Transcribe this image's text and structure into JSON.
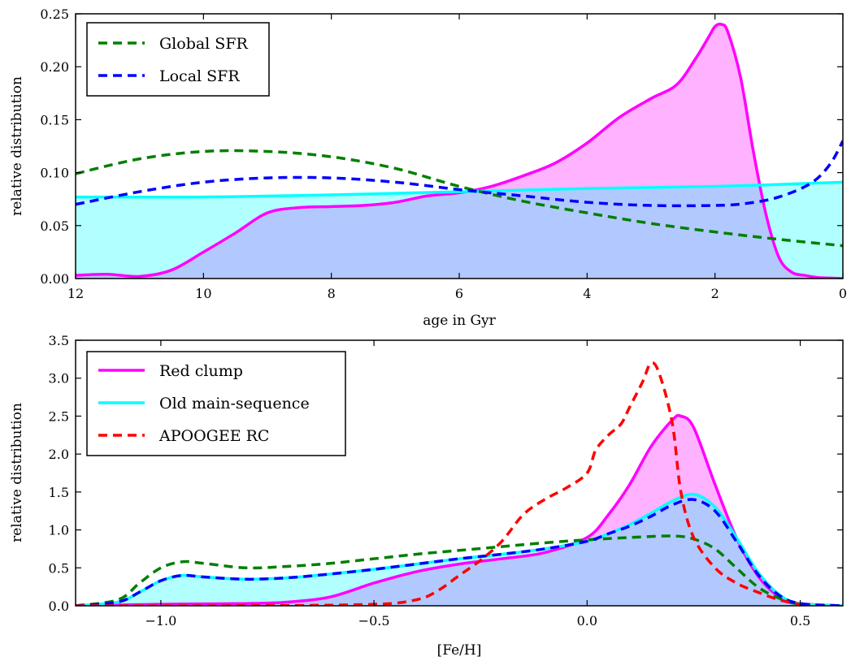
{
  "colors": {
    "magenta": "#ff00ff",
    "cyan": "#00ffff",
    "green": "#007f00",
    "blue": "#0000ff",
    "red": "#ff0000",
    "magenta_fill": "#e8b3e8",
    "cyan_fill": "#b3e9e9",
    "overlap_fill": "#a6b6de"
  },
  "chart_data": [
    {
      "type": "area",
      "xlabel": "age in Gyr",
      "ylabel": "relative distribution",
      "xlim": [
        12,
        0
      ],
      "ylim": [
        0,
        0.25
      ],
      "xticks": [
        12,
        10,
        8,
        6,
        4,
        2,
        0
      ],
      "xtick_labels": [
        "12",
        "10",
        "8",
        "6",
        "4",
        "2",
        "0"
      ],
      "yticks": [
        0,
        0.05,
        0.1,
        0.15,
        0.2,
        0.25
      ],
      "ytick_labels": [
        "0.00",
        "0.05",
        "0.10",
        "0.15",
        "0.20",
        "0.25"
      ],
      "legend": {
        "position": "top-left",
        "entries": [
          "Global SFR",
          "Local SFR"
        ]
      },
      "series": [
        {
          "name": "",
          "color": "magenta",
          "style": "solid",
          "filled": true,
          "x": [
            12,
            11.5,
            11,
            10.5,
            10,
            9.5,
            9,
            8.5,
            8,
            7.5,
            7,
            6.5,
            6,
            5.5,
            5,
            4.5,
            4,
            3.5,
            3,
            2.6,
            2.3,
            2.1,
            2.0,
            1.9,
            1.8,
            1.6,
            1.4,
            1.2,
            1.0,
            0.8,
            0.6,
            0.4,
            0.2,
            0
          ],
          "y": [
            0.003,
            0.004,
            0.002,
            0.008,
            0.025,
            0.043,
            0.062,
            0.067,
            0.068,
            0.069,
            0.072,
            0.078,
            0.081,
            0.087,
            0.097,
            0.109,
            0.128,
            0.152,
            0.17,
            0.183,
            0.208,
            0.228,
            0.238,
            0.24,
            0.233,
            0.19,
            0.12,
            0.06,
            0.02,
            0.006,
            0.003,
            0.001,
            0.0005,
            0
          ]
        },
        {
          "name": "",
          "color": "cyan",
          "style": "solid",
          "filled": true,
          "x": [
            12,
            10,
            8,
            6,
            4,
            2,
            0
          ],
          "y": [
            0.077,
            0.077,
            0.079,
            0.082,
            0.085,
            0.087,
            0.091
          ]
        },
        {
          "name": "Global SFR",
          "color": "green",
          "style": "dashed",
          "x": [
            12,
            11,
            10,
            9,
            8,
            7,
            6,
            5,
            4,
            3,
            2,
            1,
            0
          ],
          "y": [
            0.099,
            0.113,
            0.12,
            0.12,
            0.115,
            0.104,
            0.087,
            0.073,
            0.062,
            0.052,
            0.044,
            0.037,
            0.031
          ]
        },
        {
          "name": "Local SFR",
          "color": "blue",
          "style": "dashed",
          "x": [
            12,
            11,
            10,
            9,
            8,
            7,
            6,
            5,
            4,
            3,
            2,
            1.5,
            1,
            0.5,
            0.2,
            0
          ],
          "y": [
            0.07,
            0.082,
            0.091,
            0.095,
            0.095,
            0.091,
            0.084,
            0.078,
            0.072,
            0.069,
            0.069,
            0.071,
            0.077,
            0.09,
            0.108,
            0.13
          ]
        }
      ]
    },
    {
      "type": "area",
      "xlabel": "[Fe/H]",
      "ylabel": "relative distribution",
      "xlim": [
        -1.2,
        0.6
      ],
      "ylim": [
        0,
        3.5
      ],
      "xticks": [
        -1.0,
        -0.5,
        0.0,
        0.5
      ],
      "xtick_labels": [
        "−1.0",
        "−0.5",
        "0.0",
        "0.5"
      ],
      "yticks": [
        0,
        0.5,
        1.0,
        1.5,
        2.0,
        2.5,
        3.0,
        3.5
      ],
      "ytick_labels": [
        "0.0",
        "0.5",
        "1.0",
        "1.5",
        "2.0",
        "2.5",
        "3.0",
        "3.5"
      ],
      "legend": {
        "position": "top-left",
        "entries": [
          "Red clump",
          "Old main-sequence",
          "APOOGEE RC"
        ]
      },
      "series": [
        {
          "name": "Red clump",
          "color": "magenta",
          "style": "solid",
          "filled": true,
          "x": [
            -1.2,
            -1.0,
            -0.8,
            -0.7,
            -0.6,
            -0.5,
            -0.4,
            -0.3,
            -0.2,
            -0.1,
            0.0,
            0.05,
            0.1,
            0.15,
            0.2,
            0.22,
            0.25,
            0.3,
            0.35,
            0.4,
            0.45,
            0.5,
            0.6
          ],
          "y": [
            0.0,
            0.02,
            0.03,
            0.05,
            0.12,
            0.3,
            0.45,
            0.55,
            0.62,
            0.7,
            0.9,
            1.2,
            1.6,
            2.1,
            2.45,
            2.5,
            2.35,
            1.6,
            0.9,
            0.4,
            0.12,
            0.03,
            0.0
          ]
        },
        {
          "name": "Old main-sequence",
          "color": "cyan",
          "style": "solid",
          "filled": true,
          "x": [
            -1.2,
            -1.1,
            -1.05,
            -1.0,
            -0.95,
            -0.9,
            -0.8,
            -0.7,
            -0.6,
            -0.5,
            -0.4,
            -0.3,
            -0.2,
            -0.1,
            0.0,
            0.05,
            0.1,
            0.15,
            0.2,
            0.25,
            0.3,
            0.35,
            0.4,
            0.45,
            0.5,
            0.6
          ],
          "y": [
            0.0,
            0.05,
            0.18,
            0.33,
            0.4,
            0.38,
            0.35,
            0.37,
            0.42,
            0.48,
            0.55,
            0.62,
            0.68,
            0.75,
            0.85,
            0.95,
            1.07,
            1.22,
            1.38,
            1.47,
            1.3,
            0.9,
            0.45,
            0.15,
            0.03,
            0.0
          ]
        },
        {
          "name": "",
          "color": "green",
          "style": "dashed",
          "x": [
            -1.2,
            -1.1,
            -1.05,
            -1.0,
            -0.95,
            -0.9,
            -0.8,
            -0.7,
            -0.6,
            -0.5,
            -0.4,
            -0.3,
            -0.2,
            -0.1,
            0.0,
            0.1,
            0.2,
            0.25,
            0.3,
            0.35,
            0.4,
            0.45,
            0.5,
            0.6
          ],
          "y": [
            0.0,
            0.08,
            0.3,
            0.5,
            0.58,
            0.56,
            0.5,
            0.52,
            0.56,
            0.62,
            0.68,
            0.73,
            0.78,
            0.83,
            0.87,
            0.9,
            0.92,
            0.88,
            0.75,
            0.5,
            0.25,
            0.1,
            0.02,
            0.0
          ]
        },
        {
          "name": "",
          "color": "blue",
          "style": "dashed",
          "x": [
            -1.2,
            -1.1,
            -1.05,
            -1.0,
            -0.95,
            -0.9,
            -0.8,
            -0.7,
            -0.6,
            -0.5,
            -0.4,
            -0.3,
            -0.2,
            -0.1,
            0.0,
            0.05,
            0.1,
            0.15,
            0.2,
            0.25,
            0.3,
            0.35,
            0.4,
            0.45,
            0.5,
            0.6
          ],
          "y": [
            0.0,
            0.05,
            0.18,
            0.33,
            0.4,
            0.38,
            0.35,
            0.37,
            0.42,
            0.48,
            0.55,
            0.62,
            0.68,
            0.75,
            0.85,
            0.95,
            1.05,
            1.18,
            1.33,
            1.4,
            1.25,
            0.85,
            0.42,
            0.14,
            0.03,
            0.0
          ]
        },
        {
          "name": "APOOGEE RC",
          "color": "red",
          "style": "dashed",
          "x": [
            -1.2,
            -0.8,
            -0.5,
            -0.4,
            -0.35,
            -0.3,
            -0.25,
            -0.2,
            -0.15,
            -0.1,
            -0.05,
            0.0,
            0.02,
            0.05,
            0.08,
            0.1,
            0.13,
            0.15,
            0.17,
            0.2,
            0.22,
            0.25,
            0.3,
            0.35,
            0.4,
            0.45,
            0.5
          ],
          "y": [
            0.0,
            0.0,
            0.02,
            0.08,
            0.2,
            0.4,
            0.6,
            0.85,
            1.2,
            1.4,
            1.55,
            1.75,
            2.05,
            2.25,
            2.4,
            2.62,
            2.95,
            3.2,
            3.05,
            2.4,
            1.5,
            0.9,
            0.5,
            0.3,
            0.18,
            0.08,
            0.02
          ]
        }
      ]
    }
  ]
}
